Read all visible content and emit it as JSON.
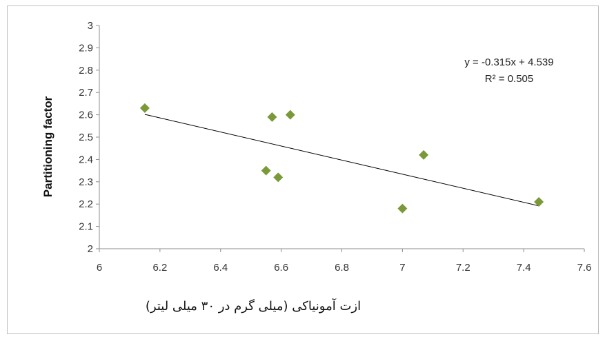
{
  "chart_data": {
    "type": "scatter",
    "xlabel": "ازت آمونیاکی (میلی گرم در ۳۰ میلی لیتر)",
    "ylabel": "Partitioning  factor",
    "xlim": [
      6,
      7.6
    ],
    "ylim": [
      2,
      3
    ],
    "x_ticks": [
      "6",
      "6.2",
      "6.4",
      "6.6",
      "6.8",
      "7",
      "7.2",
      "7.4",
      "7.6"
    ],
    "y_ticks": [
      "2",
      "2.1",
      "2.2",
      "2.3",
      "2.4",
      "2.5",
      "2.6",
      "2.7",
      "2.8",
      "2.9",
      "3"
    ],
    "grid": false,
    "marker": "diamond",
    "marker_color": "#7a9a3a",
    "points": [
      {
        "x": 6.15,
        "y": 2.63
      },
      {
        "x": 6.55,
        "y": 2.35
      },
      {
        "x": 6.57,
        "y": 2.59
      },
      {
        "x": 6.59,
        "y": 2.32
      },
      {
        "x": 6.63,
        "y": 2.6
      },
      {
        "x": 7.0,
        "y": 2.18
      },
      {
        "x": 7.07,
        "y": 2.42
      },
      {
        "x": 7.45,
        "y": 2.21
      }
    ],
    "trendline": {
      "slope": -0.315,
      "intercept": 4.539,
      "x_range": [
        6.15,
        7.45
      ],
      "color": "#000000",
      "equation_label": "y = -0.315x + 4.539",
      "r2_label": "R² = 0.505"
    }
  }
}
